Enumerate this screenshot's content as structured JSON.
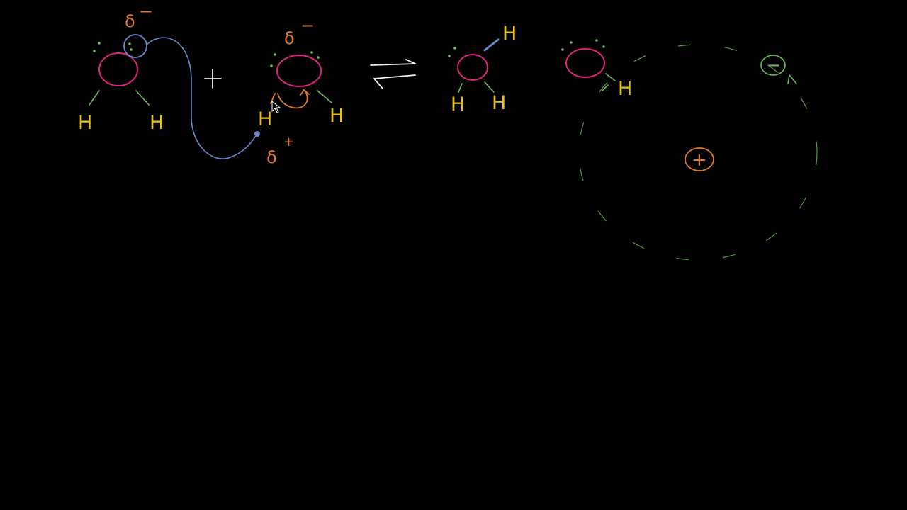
{
  "labels": {
    "hydrogen": "H",
    "delta_minus": "δ",
    "minus_sign": "−",
    "delta_plus": "δ",
    "plus_sign": "+",
    "positive_charge": "+",
    "negative_charge": "−"
  },
  "colors": {
    "background": "#000000",
    "oxygen": "#e0247a",
    "hydrogen": "#e8c21a",
    "bond": "#6bbf59",
    "charge": "#e07a2a",
    "electron_pair": "#6a86c9",
    "chalk": "#f2f2f2"
  }
}
